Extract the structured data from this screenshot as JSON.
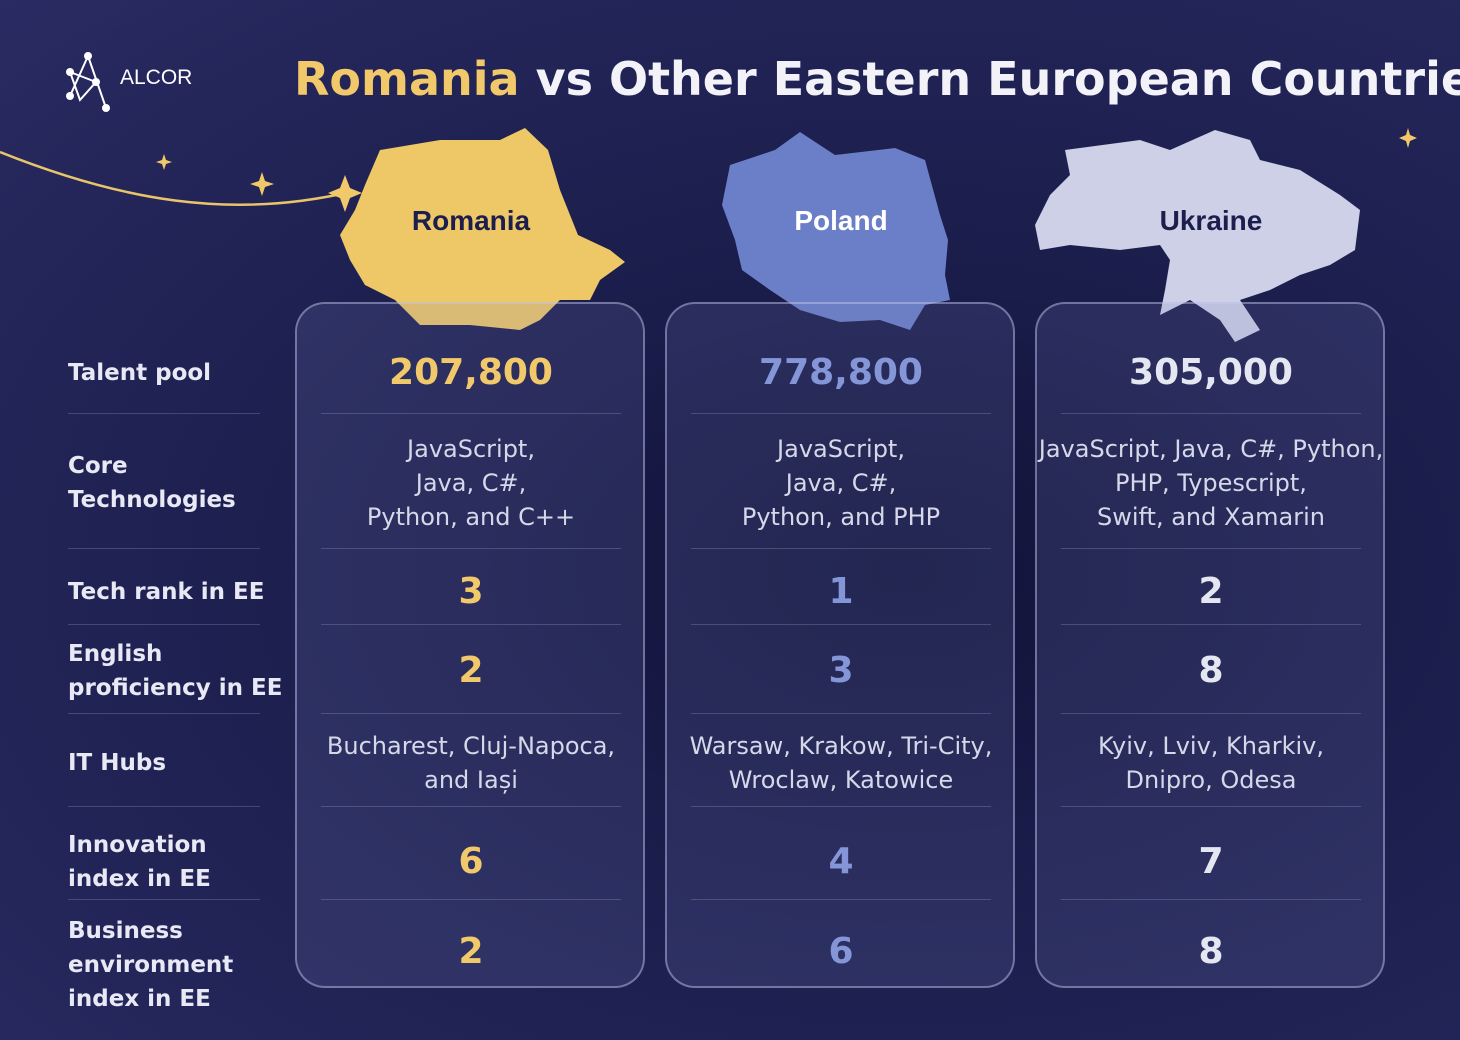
{
  "logo": "ALCOR",
  "title": {
    "highlight": "Romania",
    "rest": "vs Other Eastern European Countries"
  },
  "row_labels": [
    [
      "Talent pool"
    ],
    [
      "Core",
      "Technologies"
    ],
    [
      "Tech rank in EE"
    ],
    [
      "English",
      "proficiency in EE"
    ],
    [
      "IT Hubs"
    ],
    [
      "Innovation",
      "index in EE"
    ],
    [
      "Business",
      "environment",
      "index in EE"
    ]
  ],
  "columns": [
    {
      "name": "Romania",
      "cells": [
        [
          "207,800"
        ],
        [
          "JavaScript,",
          "Java, C#,",
          "Python, and C++"
        ],
        [
          "3"
        ],
        [
          "2"
        ],
        [
          "Bucharest, Cluj-Napoca,",
          "and Iași"
        ],
        [
          "6"
        ],
        [
          "2"
        ]
      ]
    },
    {
      "name": "Poland",
      "cells": [
        [
          "778,800"
        ],
        [
          "JavaScript,",
          "Java, C#,",
          "Python, and PHP"
        ],
        [
          "1"
        ],
        [
          "3"
        ],
        [
          "Warsaw, Krakow, Tri-City,",
          "Wroclaw, Katowice"
        ],
        [
          "4"
        ],
        [
          "6"
        ]
      ]
    },
    {
      "name": "Ukraine",
      "cells": [
        [
          "305,000"
        ],
        [
          "JavaScript, Java, C#, Python,",
          "PHP, Typescript,",
          "Swift, and Xamarin"
        ],
        [
          "2"
        ],
        [
          "8"
        ],
        [
          "Kyiv, Lviv, Kharkiv,",
          "Dnipro, Odesa"
        ],
        [
          "7"
        ],
        [
          "8"
        ]
      ]
    }
  ]
}
